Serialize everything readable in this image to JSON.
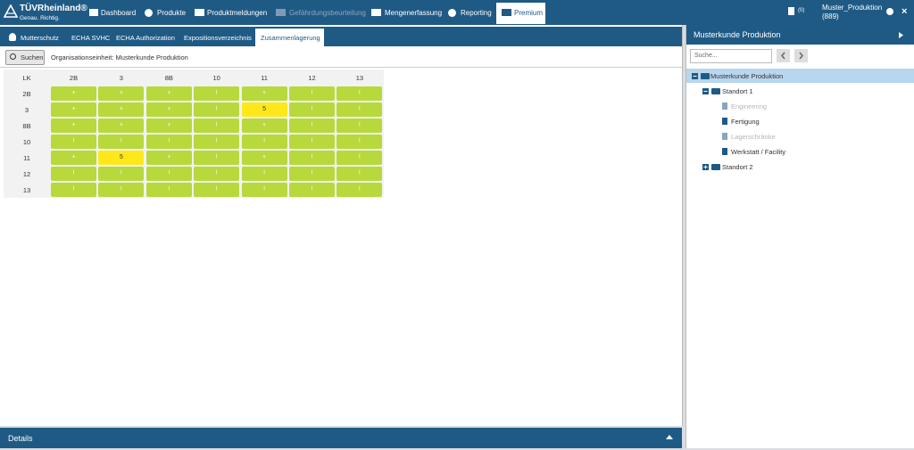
{
  "header": {
    "logo": "TÜVRheinland®",
    "slogan": "Genau. Richtig.",
    "nav": [
      "Dashboard",
      "Produkte",
      "Produktmeldungen",
      "Gefährdungsbeurteilung",
      "Mengenerfassung",
      "Reporting",
      "Premium"
    ],
    "cart": "(0)",
    "user": "Muster_Produktion",
    "user_id": "(889)"
  },
  "tabs": [
    "Mutterschutz",
    "ECHA SVHC",
    "ECHA Authorization",
    "Expositionsverzeichnis",
    "Zusammenlagerung"
  ],
  "toolbar": {
    "button": "Suchen",
    "org_unit": "Organisationseinheit: Musterkunde Produktion"
  },
  "grid": {
    "corner": "LK",
    "columns": [
      "2B",
      "3",
      "8B",
      "10",
      "11",
      "12",
      "13"
    ],
    "rows": [
      {
        "label": "2B",
        "cells": [
          {
            "text": "+",
            "color": "#b7d93c"
          },
          {
            "text": "+",
            "color": "#b7d93c"
          },
          {
            "text": "+",
            "color": "#b7d93c"
          },
          {
            "text": "!",
            "color": "#b7d93c"
          },
          {
            "text": "+",
            "color": "#b7d93c"
          },
          {
            "text": "!",
            "color": "#b7d93c"
          },
          {
            "text": "!",
            "color": "#b7d93c"
          }
        ]
      },
      {
        "label": "3",
        "cells": [
          {
            "text": "+",
            "color": "#b7d93c"
          },
          {
            "text": "+",
            "color": "#b7d93c"
          },
          {
            "text": "+",
            "color": "#b7d93c"
          },
          {
            "text": "!",
            "color": "#b7d93c"
          },
          {
            "text": "5",
            "color": "#ffe81a"
          },
          {
            "text": "!",
            "color": "#b7d93c"
          },
          {
            "text": "!",
            "color": "#b7d93c"
          }
        ]
      },
      {
        "label": "8B",
        "cells": [
          {
            "text": "+",
            "color": "#b7d93c"
          },
          {
            "text": "+",
            "color": "#b7d93c"
          },
          {
            "text": "+",
            "color": "#b7d93c"
          },
          {
            "text": "!",
            "color": "#b7d93c"
          },
          {
            "text": "+",
            "color": "#b7d93c"
          },
          {
            "text": "!",
            "color": "#b7d93c"
          },
          {
            "text": "!",
            "color": "#b7d93c"
          }
        ]
      },
      {
        "label": "10",
        "cells": [
          {
            "text": "!",
            "color": "#b7d93c"
          },
          {
            "text": "!",
            "color": "#b7d93c"
          },
          {
            "text": "!",
            "color": "#b7d93c"
          },
          {
            "text": "!",
            "color": "#b7d93c"
          },
          {
            "text": "!",
            "color": "#b7d93c"
          },
          {
            "text": "!",
            "color": "#b7d93c"
          },
          {
            "text": "!",
            "color": "#b7d93c"
          }
        ]
      },
      {
        "label": "11",
        "cells": [
          {
            "text": "+",
            "color": "#b7d93c"
          },
          {
            "text": "5",
            "color": "#ffe81a"
          },
          {
            "text": "+",
            "color": "#b7d93c"
          },
          {
            "text": "!",
            "color": "#b7d93c"
          },
          {
            "text": "+",
            "color": "#b7d93c"
          },
          {
            "text": "!",
            "color": "#b7d93c"
          },
          {
            "text": "!",
            "color": "#b7d93c"
          }
        ]
      },
      {
        "label": "12",
        "cells": [
          {
            "text": "!",
            "color": "#b7d93c"
          },
          {
            "text": "!",
            "color": "#b7d93c"
          },
          {
            "text": "!",
            "color": "#b7d93c"
          },
          {
            "text": "!",
            "color": "#b7d93c"
          },
          {
            "text": "!",
            "color": "#b7d93c"
          },
          {
            "text": "!",
            "color": "#b7d93c"
          },
          {
            "text": "!",
            "color": "#b7d93c"
          }
        ]
      },
      {
        "label": "13",
        "cells": [
          {
            "text": "!",
            "color": "#b7d93c"
          },
          {
            "text": "!",
            "color": "#b7d93c"
          },
          {
            "text": "!",
            "color": "#b7d93c"
          },
          {
            "text": "!",
            "color": "#b7d93c"
          },
          {
            "text": "!",
            "color": "#b7d93c"
          },
          {
            "text": "!",
            "color": "#b7d93c"
          },
          {
            "text": "!",
            "color": "#b7d93c"
          }
        ]
      }
    ]
  },
  "details": "Details",
  "sidebar": {
    "title": "Musterkunde Produktion",
    "search_placeholder": "Suche...",
    "tree": {
      "label": "Musterkunde Produktion",
      "children": [
        {
          "label": "Standort 1",
          "children": [
            {
              "label": "Engineering",
              "disabled": true
            },
            {
              "label": "Fertigung",
              "disabled": false
            },
            {
              "label": "Lagerschränke",
              "disabled": true
            },
            {
              "label": "Werkstatt / Facility",
              "disabled": false
            }
          ]
        },
        {
          "label": "Standort 2",
          "children": []
        }
      ]
    }
  }
}
